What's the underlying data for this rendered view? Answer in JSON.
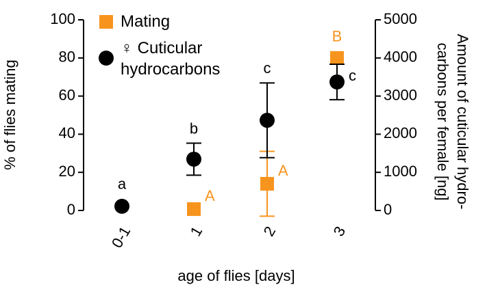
{
  "chart_data": {
    "type": "scatter",
    "xlabel": "age of flies [days]",
    "ylabel": "% of flies mating",
    "y2label": [
      "Amount of cuticular hydro-",
      "carbons per female [ng]"
    ],
    "categories": [
      "0-1",
      "1",
      "2",
      "3"
    ],
    "ylim": [
      0,
      100
    ],
    "yticks": [
      0,
      20,
      40,
      60,
      80,
      100
    ],
    "y2lim": [
      0,
      5000
    ],
    "y2ticks": [
      0,
      1000,
      2000,
      3000,
      4000,
      5000
    ],
    "series": [
      {
        "name": "Mating",
        "color": "#f7941d",
        "marker": "square",
        "values": [
          null,
          0.7,
          14,
          80
        ],
        "errors": [
          null,
          null,
          17,
          null
        ],
        "letters": [
          null,
          "A",
          "A",
          "B"
        ]
      },
      {
        "name": "♀ Cuticular hydrocarbons",
        "color": "#000000",
        "marker": "circle",
        "axis": "y2",
        "values": [
          110,
          1345,
          2365,
          3370
        ],
        "errors": [
          null,
          420,
          980,
          465
        ],
        "letters": [
          "a",
          "b",
          "c",
          "c"
        ]
      }
    ]
  }
}
